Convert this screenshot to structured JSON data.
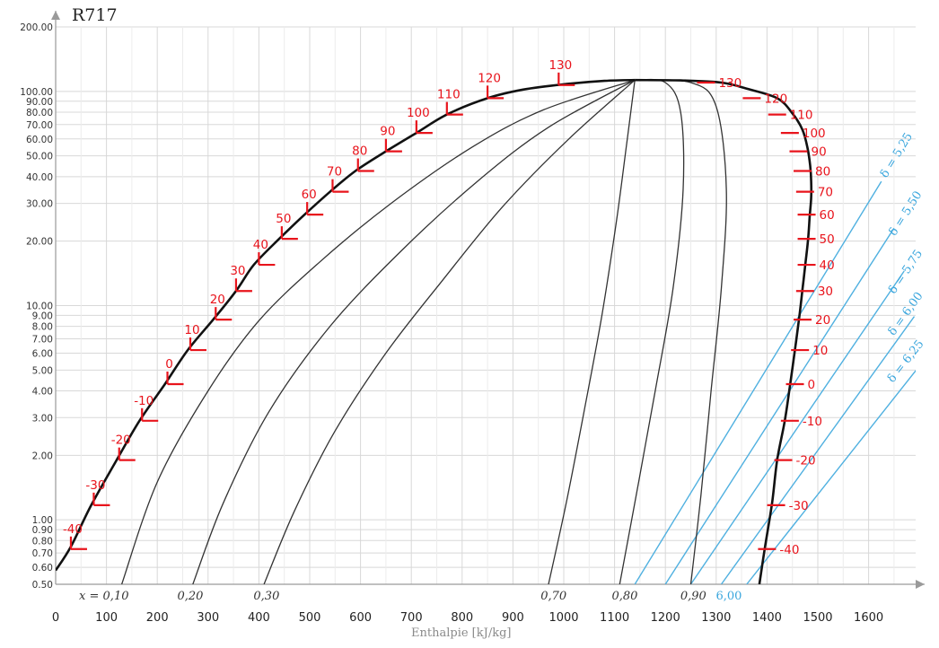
{
  "chart_data": {
    "type": "line",
    "title": "R717",
    "xlabel": "Enthalpie [kJ/kg]",
    "ylabel": "",
    "x_scale": "linear",
    "y_scale": "log",
    "xlim": [
      0,
      1700
    ],
    "ylim": [
      0.5,
      200
    ],
    "grid": true,
    "x_ticks": [
      "0",
      "100",
      "200",
      "300",
      "400",
      "500",
      "600",
      "700",
      "800",
      "900",
      "1000",
      "1100",
      "1200",
      "1300",
      "1400",
      "1500",
      "1600"
    ],
    "y_ticks": [
      "0.50",
      "0.60",
      "0.70",
      "0.80",
      "0.90",
      "1.00",
      "2.00",
      "3.00",
      "4.00",
      "5.00",
      "6.00",
      "7.00",
      "8.00",
      "9.00",
      "10.00",
      "20.00",
      "30.00",
      "40.00",
      "50.00",
      "60.00",
      "70.00",
      "80.00",
      "90.00",
      "100.00",
      "200.00"
    ],
    "critical_point": {
      "h": 1140,
      "p": 113
    },
    "saturated_liquid": [
      [
        0,
        0.58
      ],
      [
        30,
        0.75
      ],
      [
        70,
        1.17
      ],
      [
        120,
        1.9
      ],
      [
        165,
        2.9
      ],
      [
        215,
        4.3
      ],
      [
        260,
        6.2
      ],
      [
        310,
        8.6
      ],
      [
        355,
        11.7
      ],
      [
        390,
        15.5
      ],
      [
        440,
        20.5
      ],
      [
        490,
        26.6
      ],
      [
        540,
        34
      ],
      [
        590,
        42.5
      ],
      [
        650,
        52.5
      ],
      [
        710,
        64
      ],
      [
        770,
        78
      ],
      [
        850,
        93
      ],
      [
        920,
        102
      ],
      [
        1000,
        108
      ],
      [
        1080,
        112
      ],
      [
        1140,
        113
      ]
    ],
    "saturated_vapor": [
      [
        1140,
        113
      ],
      [
        1230,
        112.5
      ],
      [
        1310,
        110
      ],
      [
        1360,
        103
      ],
      [
        1420,
        93
      ],
      [
        1450,
        79
      ],
      [
        1470,
        66
      ],
      [
        1480,
        54
      ],
      [
        1485,
        45
      ],
      [
        1487,
        38
      ],
      [
        1487,
        32
      ],
      [
        1484,
        26
      ],
      [
        1481,
        20.5
      ],
      [
        1476,
        16
      ],
      [
        1470,
        12
      ],
      [
        1464,
        9
      ],
      [
        1455,
        6.2
      ],
      [
        1445,
        4.2
      ],
      [
        1435,
        2.9
      ],
      [
        1420,
        1.9
      ],
      [
        1410,
        1.2
      ],
      [
        1395,
        0.72
      ],
      [
        1385,
        0.5
      ]
    ],
    "quality_lines": [
      {
        "label": "x = 0,10",
        "points": [
          [
            130,
            0.5
          ],
          [
            200,
            1.5
          ],
          [
            300,
            4
          ],
          [
            400,
            8.5
          ],
          [
            520,
            16
          ],
          [
            660,
            30
          ],
          [
            820,
            55
          ],
          [
            960,
            82
          ],
          [
            1140,
            113
          ]
        ]
      },
      {
        "label": "0,20",
        "points": [
          [
            270,
            0.5
          ],
          [
            330,
            1.2
          ],
          [
            420,
            3.2
          ],
          [
            540,
            8
          ],
          [
            680,
            18
          ],
          [
            830,
            38
          ],
          [
            970,
            68
          ],
          [
            1140,
            113
          ]
        ]
      },
      {
        "label": "0,30",
        "points": [
          [
            410,
            0.5
          ],
          [
            470,
            1.1
          ],
          [
            550,
            2.6
          ],
          [
            650,
            6
          ],
          [
            760,
            13
          ],
          [
            880,
            29
          ],
          [
            1010,
            60
          ],
          [
            1140,
            113
          ]
        ]
      },
      {
        "label": "0,70",
        "points": [
          [
            970,
            0.5
          ],
          [
            1005,
            1.2
          ],
          [
            1040,
            3.2
          ],
          [
            1075,
            9
          ],
          [
            1105,
            26
          ],
          [
            1125,
            60
          ],
          [
            1140,
            113
          ]
        ]
      },
      {
        "label": "0,80",
        "points": [
          [
            1110,
            0.5
          ],
          [
            1145,
            1.4
          ],
          [
            1180,
            4
          ],
          [
            1215,
            12
          ],
          [
            1235,
            35
          ],
          [
            1230,
            80
          ],
          [
            1200,
            110
          ],
          [
            1140,
            113
          ]
        ]
      },
      {
        "label": "0,90",
        "points": [
          [
            1250,
            0.5
          ],
          [
            1270,
            1.3
          ],
          [
            1290,
            4
          ],
          [
            1310,
            12
          ],
          [
            1320,
            35
          ],
          [
            1300,
            85
          ],
          [
            1250,
            110
          ],
          [
            1140,
            113
          ]
        ]
      }
    ],
    "entropy_lines": [
      {
        "label": "δ = 5,25",
        "points": [
          [
            1140,
            0.5
          ],
          [
            1625,
            38
          ]
        ]
      },
      {
        "label": "δ = 5,50",
        "points": [
          [
            1200,
            0.5
          ],
          [
            1650,
            23
          ]
        ]
      },
      {
        "label": "δ = 5,75",
        "points": [
          [
            1250,
            0.5
          ],
          [
            1670,
            14.5
          ]
        ]
      },
      {
        "label": "δ = 6,00",
        "points": [
          [
            1310,
            0.5
          ],
          [
            1690,
            8.9
          ]
        ]
      },
      {
        "label": "δ = 6,25",
        "points": [
          [
            1360,
            0.5
          ],
          [
            1710,
            5.6
          ]
        ]
      }
    ],
    "x_axis_labels": [
      {
        "text": "x = 0,10",
        "h": 95,
        "kind": "quality"
      },
      {
        "text": "0,20",
        "h": 265,
        "kind": "quality"
      },
      {
        "text": "0,30",
        "h": 415,
        "kind": "quality"
      },
      {
        "text": "0,70",
        "h": 980,
        "kind": "quality"
      },
      {
        "text": "0,80",
        "h": 1120,
        "kind": "quality"
      },
      {
        "text": "0,90",
        "h": 1255,
        "kind": "quality"
      },
      {
        "text": "6,00",
        "h": 1325,
        "kind": "entropy"
      }
    ],
    "temperature_marks_liquid": [
      {
        "label": "-40",
        "h": 30,
        "p": 0.73
      },
      {
        "label": "-30",
        "h": 75,
        "p": 1.17
      },
      {
        "label": "-20",
        "h": 125,
        "p": 1.9
      },
      {
        "label": "-10",
        "h": 170,
        "p": 2.9
      },
      {
        "label": "0",
        "h": 220,
        "p": 4.3
      },
      {
        "label": "10",
        "h": 265,
        "p": 6.2
      },
      {
        "label": "20",
        "h": 315,
        "p": 8.6
      },
      {
        "label": "30",
        "h": 355,
        "p": 11.7
      },
      {
        "label": "40",
        "h": 400,
        "p": 15.5
      },
      {
        "label": "50",
        "h": 445,
        "p": 20.5
      },
      {
        "label": "60",
        "h": 495,
        "p": 26.6
      },
      {
        "label": "70",
        "h": 545,
        "p": 34
      },
      {
        "label": "80",
        "h": 595,
        "p": 42.5
      },
      {
        "label": "90",
        "h": 650,
        "p": 52.5
      },
      {
        "label": "100",
        "h": 710,
        "p": 64
      },
      {
        "label": "110",
        "h": 770,
        "p": 78
      },
      {
        "label": "120",
        "h": 850,
        "p": 93
      },
      {
        "label": "130",
        "h": 990,
        "p": 107
      }
    ],
    "temperature_marks_vapor": [
      {
        "label": "130",
        "h": 1280,
        "p": 110
      },
      {
        "label": "120",
        "h": 1370,
        "p": 93
      },
      {
        "label": "110",
        "h": 1420,
        "p": 78
      },
      {
        "label": "100",
        "h": 1445,
        "p": 64
      },
      {
        "label": "90",
        "h": 1462,
        "p": 52.5
      },
      {
        "label": "80",
        "h": 1470,
        "p": 42.5
      },
      {
        "label": "70",
        "h": 1475,
        "p": 34
      },
      {
        "label": "60",
        "h": 1478,
        "p": 26.6
      },
      {
        "label": "50",
        "h": 1478,
        "p": 20.5
      },
      {
        "label": "40",
        "h": 1478,
        "p": 15.5
      },
      {
        "label": "30",
        "h": 1475,
        "p": 11.7
      },
      {
        "label": "20",
        "h": 1470,
        "p": 8.6
      },
      {
        "label": "10",
        "h": 1465,
        "p": 6.2
      },
      {
        "label": "0",
        "h": 1455,
        "p": 4.3
      },
      {
        "label": "-10",
        "h": 1445,
        "p": 2.9
      },
      {
        "label": "-20",
        "h": 1432,
        "p": 1.9
      },
      {
        "label": "-30",
        "h": 1418,
        "p": 1.17
      },
      {
        "label": "-40",
        "h": 1400,
        "p": 0.73
      }
    ],
    "colors": {
      "grid": "#d8d8d8",
      "saturation": "#111111",
      "quality": "#333333",
      "entropy": "#4fb0e0",
      "temperature": "#e8141c",
      "axis": "#9a9a9a"
    }
  }
}
